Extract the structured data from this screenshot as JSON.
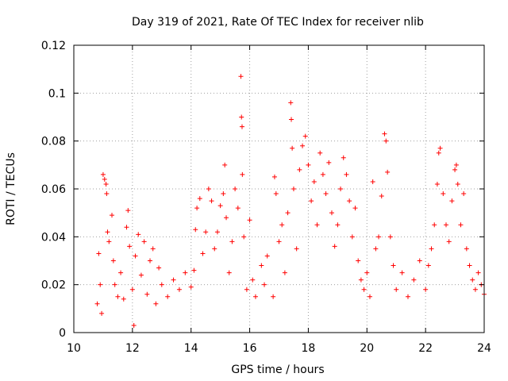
{
  "chart_data": {
    "type": "scatter",
    "title": "Day 319 of 2021, Rate Of TEC Index for receiver nlib",
    "xlabel": "GPS time / hours",
    "ylabel": "ROTI / TECUs",
    "xlim": [
      10,
      24
    ],
    "ylim": [
      0,
      0.12
    ],
    "x_ticks": [
      10,
      12,
      14,
      16,
      18,
      20,
      22,
      24
    ],
    "x_tick_labels": [
      "10",
      "12",
      "14",
      "16",
      "18",
      "20",
      "22",
      "24"
    ],
    "y_ticks": [
      0,
      0.02,
      0.04,
      0.06,
      0.08,
      0.1,
      0.12
    ],
    "y_tick_labels": [
      "0",
      "0.02",
      "0.04",
      "0.06",
      "0.08",
      "0.1",
      "0.12"
    ],
    "grid": true,
    "marker": "+",
    "color": "#ff0000",
    "series": [
      {
        "name": "ROTI",
        "points": [
          [
            10.8,
            0.012
          ],
          [
            10.85,
            0.033
          ],
          [
            10.9,
            0.02
          ],
          [
            10.95,
            0.008
          ],
          [
            11.0,
            0.066
          ],
          [
            11.05,
            0.064
          ],
          [
            11.1,
            0.062
          ],
          [
            11.12,
            0.058
          ],
          [
            11.15,
            0.042
          ],
          [
            11.2,
            0.038
          ],
          [
            11.3,
            0.049
          ],
          [
            11.35,
            0.03
          ],
          [
            11.4,
            0.02
          ],
          [
            11.5,
            0.015
          ],
          [
            11.6,
            0.025
          ],
          [
            11.7,
            0.014
          ],
          [
            11.8,
            0.044
          ],
          [
            11.85,
            0.051
          ],
          [
            11.9,
            0.036
          ],
          [
            12.0,
            0.018
          ],
          [
            12.05,
            0.003
          ],
          [
            12.1,
            0.032
          ],
          [
            12.2,
            0.041
          ],
          [
            12.3,
            0.024
          ],
          [
            12.4,
            0.038
          ],
          [
            12.5,
            0.016
          ],
          [
            12.6,
            0.03
          ],
          [
            12.7,
            0.035
          ],
          [
            12.8,
            0.012
          ],
          [
            12.9,
            0.027
          ],
          [
            13.0,
            0.02
          ],
          [
            13.2,
            0.015
          ],
          [
            13.4,
            0.022
          ],
          [
            13.6,
            0.018
          ],
          [
            13.8,
            0.025
          ],
          [
            14.0,
            0.019
          ],
          [
            14.1,
            0.026
          ],
          [
            14.15,
            0.043
          ],
          [
            14.2,
            0.052
          ],
          [
            14.3,
            0.056
          ],
          [
            14.4,
            0.033
          ],
          [
            14.5,
            0.042
          ],
          [
            14.6,
            0.06
          ],
          [
            14.7,
            0.055
          ],
          [
            14.8,
            0.035
          ],
          [
            14.9,
            0.042
          ],
          [
            15.0,
            0.053
          ],
          [
            15.1,
            0.058
          ],
          [
            15.15,
            0.07
          ],
          [
            15.2,
            0.048
          ],
          [
            15.3,
            0.025
          ],
          [
            15.4,
            0.038
          ],
          [
            15.5,
            0.06
          ],
          [
            15.6,
            0.052
          ],
          [
            15.7,
            0.107
          ],
          [
            15.72,
            0.09
          ],
          [
            15.74,
            0.086
          ],
          [
            15.75,
            0.066
          ],
          [
            15.8,
            0.04
          ],
          [
            15.9,
            0.018
          ],
          [
            16.0,
            0.047
          ],
          [
            16.1,
            0.022
          ],
          [
            16.2,
            0.015
          ],
          [
            16.4,
            0.028
          ],
          [
            16.5,
            0.02
          ],
          [
            16.6,
            0.032
          ],
          [
            16.8,
            0.015
          ],
          [
            16.85,
            0.065
          ],
          [
            16.9,
            0.058
          ],
          [
            17.0,
            0.038
          ],
          [
            17.1,
            0.045
          ],
          [
            17.2,
            0.025
          ],
          [
            17.3,
            0.05
          ],
          [
            17.4,
            0.096
          ],
          [
            17.42,
            0.089
          ],
          [
            17.45,
            0.077
          ],
          [
            17.5,
            0.06
          ],
          [
            17.6,
            0.035
          ],
          [
            17.7,
            0.068
          ],
          [
            17.8,
            0.078
          ],
          [
            17.9,
            0.082
          ],
          [
            18.0,
            0.07
          ],
          [
            18.1,
            0.055
          ],
          [
            18.2,
            0.063
          ],
          [
            18.3,
            0.045
          ],
          [
            18.4,
            0.075
          ],
          [
            18.5,
            0.066
          ],
          [
            18.6,
            0.058
          ],
          [
            18.7,
            0.071
          ],
          [
            18.8,
            0.05
          ],
          [
            18.9,
            0.036
          ],
          [
            19.0,
            0.045
          ],
          [
            19.1,
            0.06
          ],
          [
            19.2,
            0.073
          ],
          [
            19.3,
            0.066
          ],
          [
            19.4,
            0.055
          ],
          [
            19.5,
            0.04
          ],
          [
            19.6,
            0.052
          ],
          [
            19.7,
            0.03
          ],
          [
            19.8,
            0.022
          ],
          [
            19.9,
            0.018
          ],
          [
            20.0,
            0.025
          ],
          [
            20.1,
            0.015
          ],
          [
            20.2,
            0.063
          ],
          [
            20.3,
            0.035
          ],
          [
            20.4,
            0.04
          ],
          [
            20.5,
            0.057
          ],
          [
            20.6,
            0.083
          ],
          [
            20.65,
            0.08
          ],
          [
            20.7,
            0.067
          ],
          [
            20.8,
            0.04
          ],
          [
            20.9,
            0.028
          ],
          [
            21.0,
            0.018
          ],
          [
            21.2,
            0.025
          ],
          [
            21.4,
            0.015
          ],
          [
            21.6,
            0.022
          ],
          [
            21.8,
            0.03
          ],
          [
            22.0,
            0.018
          ],
          [
            22.1,
            0.028
          ],
          [
            22.2,
            0.035
          ],
          [
            22.3,
            0.045
          ],
          [
            22.4,
            0.062
          ],
          [
            22.45,
            0.075
          ],
          [
            22.5,
            0.077
          ],
          [
            22.6,
            0.058
          ],
          [
            22.7,
            0.045
          ],
          [
            22.8,
            0.038
          ],
          [
            22.9,
            0.055
          ],
          [
            23.0,
            0.068
          ],
          [
            23.05,
            0.07
          ],
          [
            23.1,
            0.062
          ],
          [
            23.2,
            0.045
          ],
          [
            23.3,
            0.058
          ],
          [
            23.4,
            0.035
          ],
          [
            23.5,
            0.028
          ],
          [
            23.6,
            0.022
          ],
          [
            23.7,
            0.018
          ],
          [
            23.8,
            0.025
          ],
          [
            23.9,
            0.02
          ],
          [
            24.0,
            0.016
          ]
        ]
      }
    ]
  }
}
